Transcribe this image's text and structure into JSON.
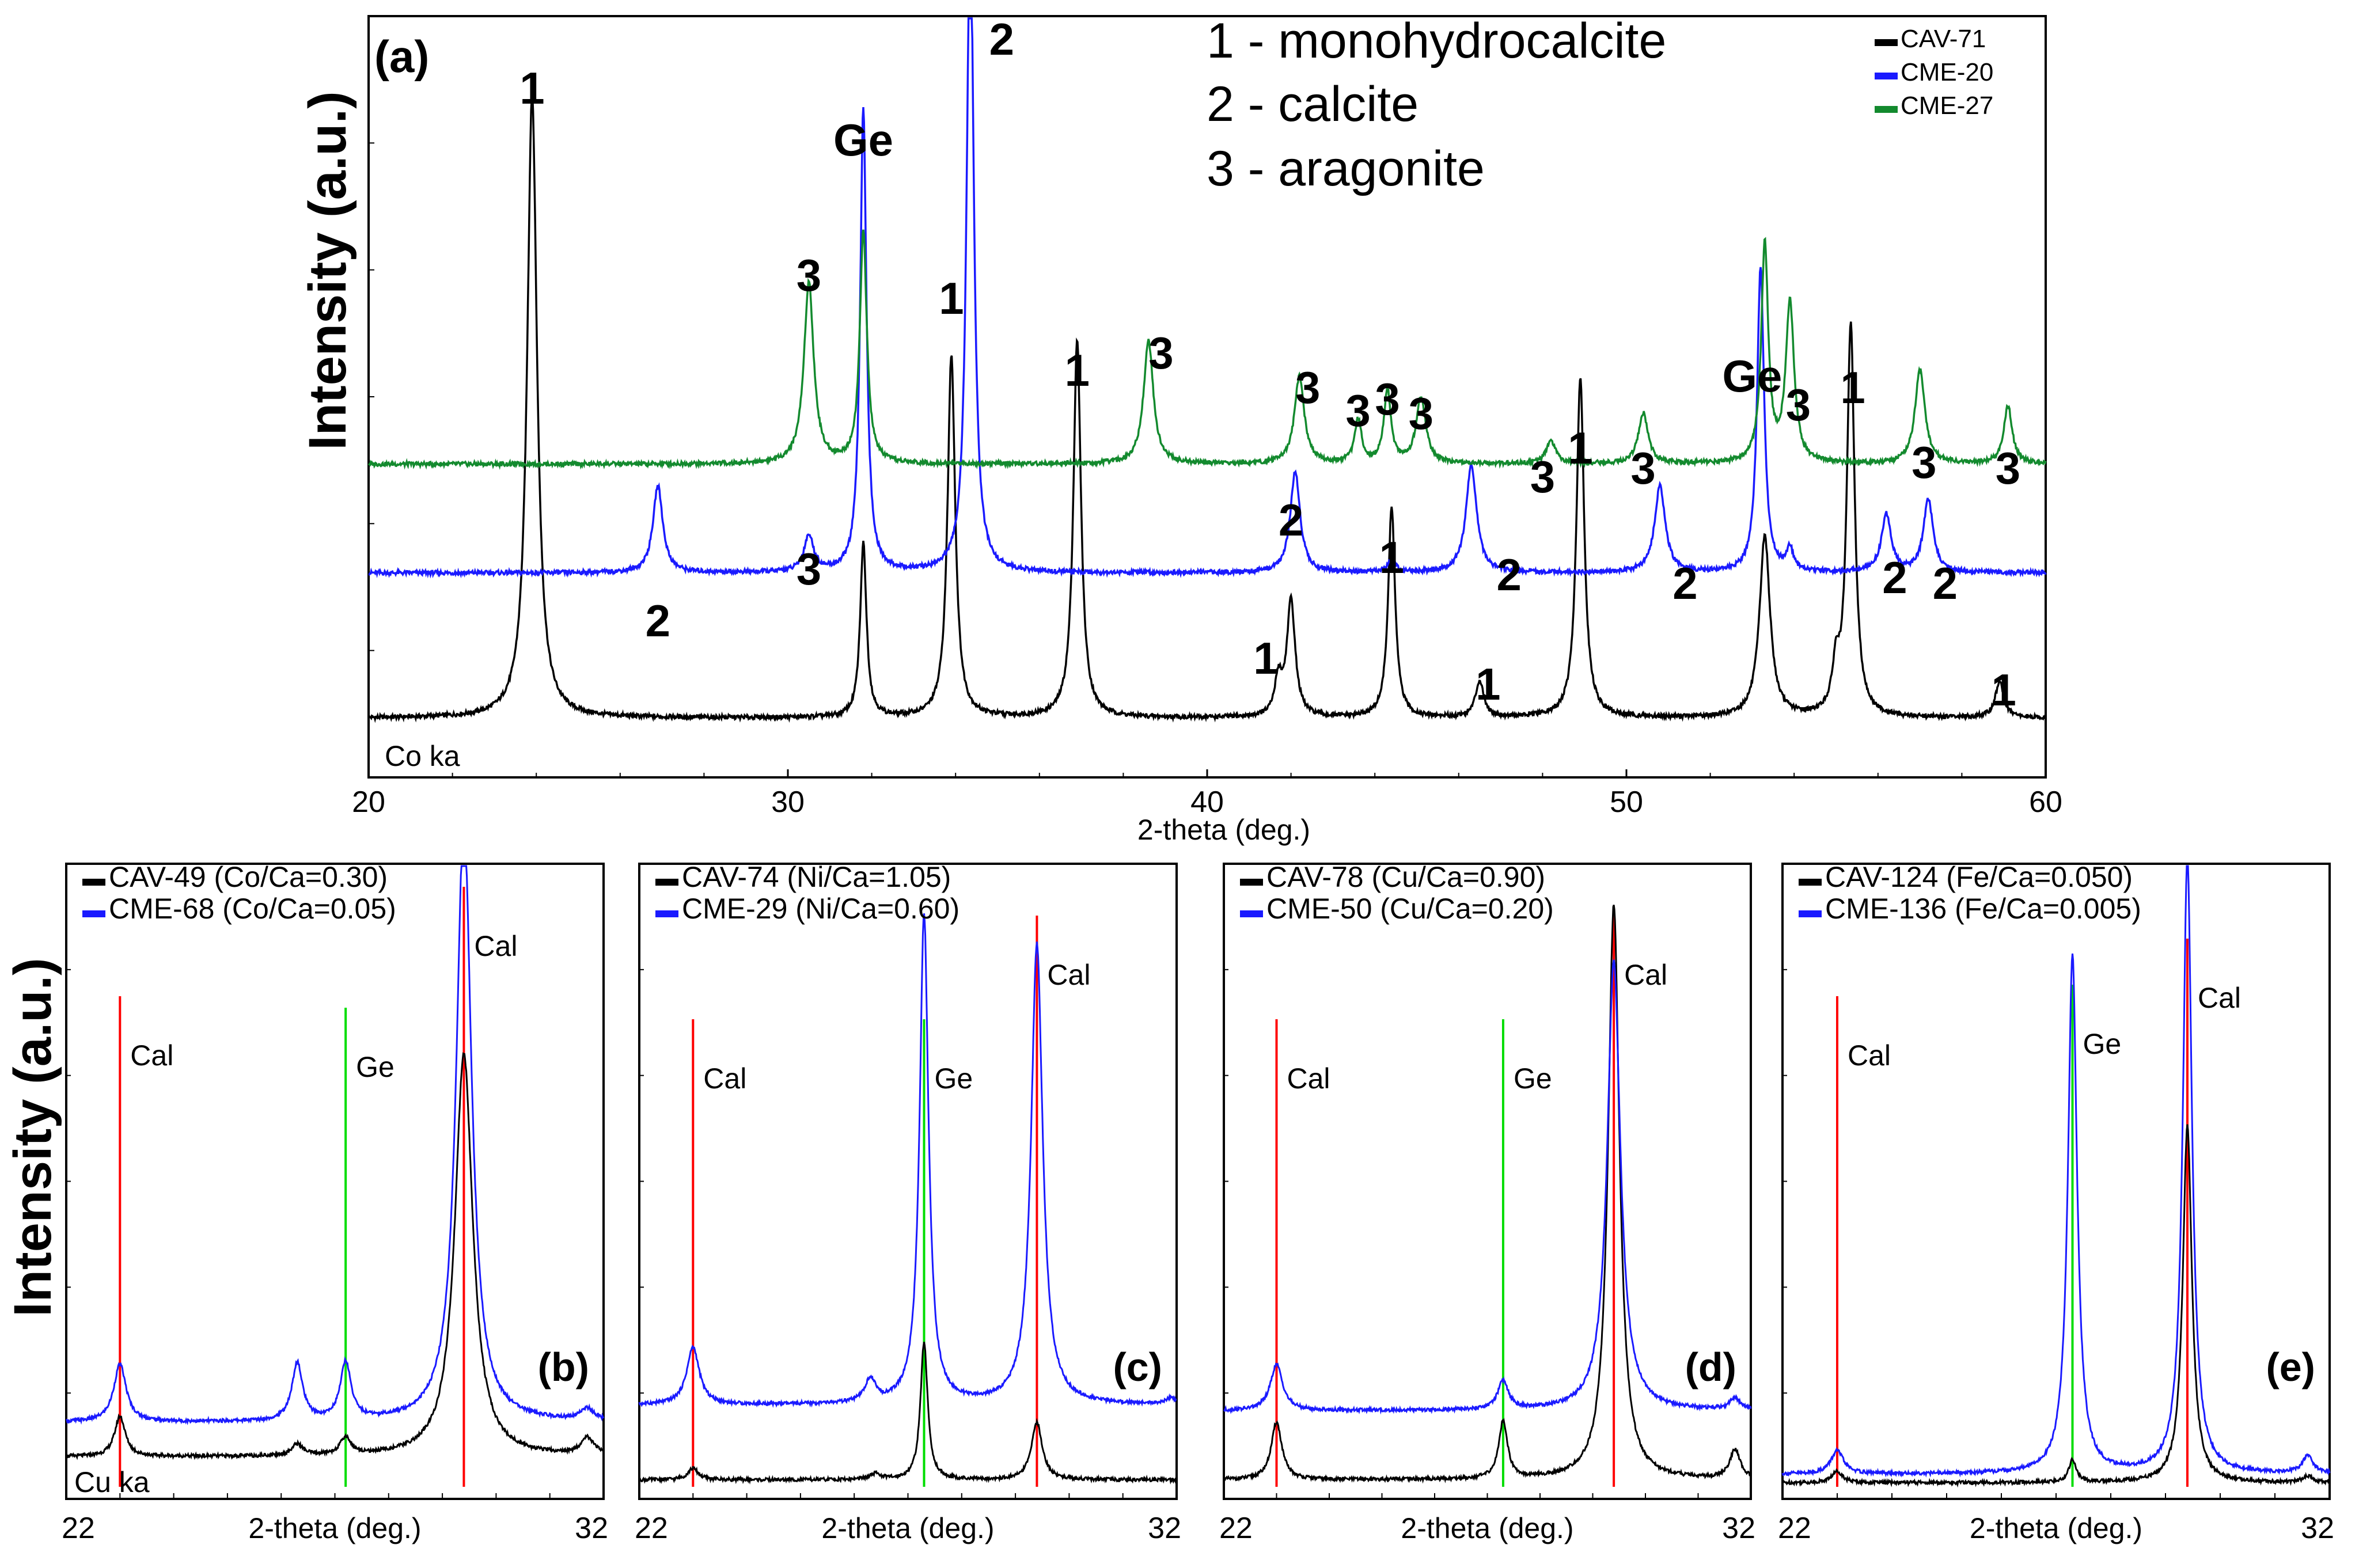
{
  "chart_data": [
    {
      "id": "a",
      "type": "line",
      "panel_label": "(a)",
      "xlabel": "2-theta (deg.)",
      "ylabel": "Intensity (a.u.)",
      "xlim": [
        20,
        60
      ],
      "xticks": [
        20,
        30,
        40,
        50,
        60
      ],
      "radiation": "Co ka",
      "phase_key": [
        "1 - monohydrocalcite",
        "2 - calcite",
        "3 - aragonite"
      ],
      "series": [
        {
          "name": "CAV-71",
          "color": "#000000",
          "baseline": 0.05,
          "peaks": [
            [
              23.9,
              0.86,
              0.14
            ],
            [
              31.8,
              0.24,
              0.09
            ],
            [
              33.9,
              0.5,
              0.11
            ],
            [
              36.9,
              0.52,
              0.11
            ],
            [
              41.7,
              0.05,
              0.1
            ],
            [
              42.0,
              0.16,
              0.12
            ],
            [
              44.4,
              0.29,
              0.1
            ],
            [
              46.5,
              0.05,
              0.12
            ],
            [
              48.9,
              0.47,
              0.11
            ],
            [
              53.3,
              0.25,
              0.15
            ],
            [
              55.0,
              0.06,
              0.1
            ],
            [
              55.35,
              0.54,
              0.11
            ],
            [
              58.9,
              0.05,
              0.12
            ]
          ]
        },
        {
          "name": "CME-20",
          "color": "#1a1aff",
          "baseline": 0.25,
          "peaks": [
            [
              26.9,
              0.12,
              0.14
            ],
            [
              30.5,
              0.05,
              0.14
            ],
            [
              31.8,
              0.64,
              0.09
            ],
            [
              34.35,
              0.92,
              0.1
            ],
            [
              42.1,
              0.14,
              0.14
            ],
            [
              44.4,
              0.02,
              0.1
            ],
            [
              46.3,
              0.15,
              0.15
            ],
            [
              50.8,
              0.12,
              0.15
            ],
            [
              53.2,
              0.42,
              0.1
            ],
            [
              53.9,
              0.03,
              0.1
            ],
            [
              56.2,
              0.08,
              0.14
            ],
            [
              57.2,
              0.1,
              0.14
            ]
          ]
        },
        {
          "name": "CME-27",
          "color": "#138a2e",
          "baseline": 0.4,
          "peaks": [
            [
              30.5,
              0.25,
              0.14
            ],
            [
              31.8,
              0.32,
              0.1
            ],
            [
              38.6,
              0.17,
              0.14
            ],
            [
              42.2,
              0.12,
              0.14
            ],
            [
              43.6,
              0.06,
              0.1
            ],
            [
              44.3,
              0.1,
              0.1
            ],
            [
              45.1,
              0.09,
              0.14
            ],
            [
              48.2,
              0.03,
              0.14
            ],
            [
              50.4,
              0.07,
              0.14
            ],
            [
              53.3,
              0.3,
              0.1
            ],
            [
              53.9,
              0.22,
              0.12
            ],
            [
              57.0,
              0.13,
              0.14
            ],
            [
              59.1,
              0.08,
              0.12
            ]
          ]
        }
      ],
      "annotations": [
        {
          "text": "1",
          "x": 23.9
        },
        {
          "text": "2",
          "x": 26.9
        },
        {
          "text": "3",
          "x": 30.5
        },
        {
          "text": "3",
          "x": 30.5
        },
        {
          "text": "Ge",
          "x": 31.8
        },
        {
          "text": "1",
          "x": 33.9
        },
        {
          "text": "2",
          "x": 35.1
        },
        {
          "text": "1",
          "x": 36.9
        },
        {
          "text": "3",
          "x": 38.9
        },
        {
          "text": "2",
          "x": 42.0
        },
        {
          "text": "1",
          "x": 41.4
        },
        {
          "text": "3",
          "x": 42.4
        },
        {
          "text": "3",
          "x": 43.6
        },
        {
          "text": "3",
          "x": 44.3
        },
        {
          "text": "3",
          "x": 45.1
        },
        {
          "text": "1",
          "x": 44.4
        },
        {
          "text": "1",
          "x": 46.7
        },
        {
          "text": "2",
          "x": 47.2
        },
        {
          "text": "3",
          "x": 48.0
        },
        {
          "text": "1",
          "x": 48.9
        },
        {
          "text": "3",
          "x": 50.4
        },
        {
          "text": "2",
          "x": 51.4
        },
        {
          "text": "Ge",
          "x": 53.0
        },
        {
          "text": "3",
          "x": 54.1
        },
        {
          "text": "1",
          "x": 55.4
        },
        {
          "text": "2",
          "x": 56.4
        },
        {
          "text": "2",
          "x": 57.6
        },
        {
          "text": "3",
          "x": 57.1
        },
        {
          "text": "3",
          "x": 59.1
        },
        {
          "text": "1",
          "x": 59.0
        }
      ]
    },
    {
      "id": "b",
      "type": "line",
      "panel_label": "(b)",
      "xlabel": "2-theta (deg.)",
      "ylabel": "Intensity (a.u.)",
      "xlim": [
        22,
        32
      ],
      "xticks": [
        22,
        32
      ],
      "radiation": "Cu ka",
      "series": [
        {
          "name": "CAV-49 (Co/Ca=0.30)",
          "color": "#000000",
          "baseline": 0.06,
          "peaks": [
            [
              23.0,
              0.07,
              0.12
            ],
            [
              26.3,
              0.02,
              0.12
            ],
            [
              27.2,
              0.03,
              0.12
            ],
            [
              29.4,
              0.7,
              0.2
            ],
            [
              31.7,
              0.03,
              0.15
            ]
          ]
        },
        {
          "name": "CME-68 (Co/Ca=0.05)",
          "color": "#1a1aff",
          "baseline": 0.12,
          "peaks": [
            [
              23.0,
              0.1,
              0.14
            ],
            [
              26.3,
              0.1,
              0.12
            ],
            [
              27.2,
              0.1,
              0.12
            ],
            [
              29.4,
              1.05,
              0.17
            ],
            [
              31.7,
              0.02,
              0.15
            ]
          ]
        }
      ],
      "reference_lines": [
        {
          "label": "Cal",
          "x": 23.0,
          "color": "#ff0000",
          "height": 0.86
        },
        {
          "label": "Ge",
          "x": 27.2,
          "color": "#00dd00",
          "height": 0.84
        },
        {
          "label": "Cal",
          "x": 29.4,
          "color": "#ff0000",
          "height": 1.05
        }
      ]
    },
    {
      "id": "c",
      "type": "line",
      "panel_label": "(c)",
      "xlabel": "2-theta (deg.)",
      "xlim": [
        22,
        32
      ],
      "xticks": [
        22,
        32
      ],
      "series": [
        {
          "name": "CAV-74 (Ni/Ca=1.05)",
          "color": "#000000",
          "baseline": 0.02,
          "peaks": [
            [
              23.0,
              0.02,
              0.12
            ],
            [
              26.4,
              0.01,
              0.12
            ],
            [
              27.3,
              0.24,
              0.08
            ],
            [
              29.4,
              0.1,
              0.12
            ]
          ]
        },
        {
          "name": "CME-29 (Ni/Ca=0.60)",
          "color": "#1a1aff",
          "baseline": 0.15,
          "peaks": [
            [
              23.0,
              0.1,
              0.14
            ],
            [
              26.3,
              0.04,
              0.12
            ],
            [
              27.3,
              0.85,
              0.1
            ],
            [
              29.4,
              0.8,
              0.13
            ],
            [
              31.9,
              0.01,
              0.12
            ]
          ]
        }
      ],
      "reference_lines": [
        {
          "label": "Cal",
          "x": 23.0,
          "color": "#ff0000",
          "height": 0.82
        },
        {
          "label": "Ge",
          "x": 27.3,
          "color": "#00dd00",
          "height": 0.82
        },
        {
          "label": "Cal",
          "x": 29.4,
          "color": "#ff0000",
          "height": 1.0
        }
      ]
    },
    {
      "id": "d",
      "type": "line",
      "panel_label": "(d)",
      "xlabel": "2-theta (deg.)",
      "xlim": [
        22,
        32
      ],
      "xticks": [
        22,
        32
      ],
      "series": [
        {
          "name": "CAV-78 (Cu/Ca=0.90)",
          "color": "#000000",
          "baseline": 0.02,
          "peaks": [
            [
              23.0,
              0.1,
              0.12
            ],
            [
              27.3,
              0.1,
              0.1
            ],
            [
              29.4,
              1.0,
              0.13
            ],
            [
              31.7,
              0.05,
              0.12
            ]
          ]
        },
        {
          "name": "CME-50 (Cu/Ca=0.20)",
          "color": "#1a1aff",
          "baseline": 0.14,
          "peaks": [
            [
              23.0,
              0.08,
              0.14
            ],
            [
              27.3,
              0.05,
              0.12
            ],
            [
              29.4,
              0.78,
              0.15
            ],
            [
              31.7,
              0.02,
              0.12
            ]
          ]
        }
      ],
      "reference_lines": [
        {
          "label": "Cal",
          "x": 23.0,
          "color": "#ff0000",
          "height": 0.82
        },
        {
          "label": "Ge",
          "x": 27.3,
          "color": "#00dd00",
          "height": 0.82
        },
        {
          "label": "Cal",
          "x": 29.4,
          "color": "#ff0000",
          "height": 1.0
        }
      ]
    },
    {
      "id": "e",
      "type": "line",
      "panel_label": "(e)",
      "xlabel": "2-theta (deg.)",
      "xlim": [
        22,
        32
      ],
      "xticks": [
        22,
        32
      ],
      "series": [
        {
          "name": "CAV-124 (Fe/Ca=0.050)",
          "color": "#000000",
          "baseline": 0.015,
          "peaks": [
            [
              23.0,
              0.02,
              0.12
            ],
            [
              27.3,
              0.04,
              0.08
            ],
            [
              29.4,
              0.62,
              0.1
            ],
            [
              31.6,
              0.01,
              0.12
            ]
          ]
        },
        {
          "name": "CME-136 (Fe/Ca=0.005)",
          "color": "#1a1aff",
          "baseline": 0.03,
          "peaks": [
            [
              23.0,
              0.04,
              0.14
            ],
            [
              27.3,
              0.9,
              0.1
            ],
            [
              29.4,
              1.07,
              0.1
            ],
            [
              31.6,
              0.03,
              0.12
            ]
          ]
        }
      ],
      "reference_lines": [
        {
          "label": "Cal",
          "x": 23.0,
          "color": "#ff0000",
          "height": 0.86
        },
        {
          "label": "Ge",
          "x": 27.3,
          "color": "#00dd00",
          "height": 0.88
        },
        {
          "label": "Cal",
          "x": 29.4,
          "color": "#ff0000",
          "height": 0.96
        }
      ]
    }
  ]
}
